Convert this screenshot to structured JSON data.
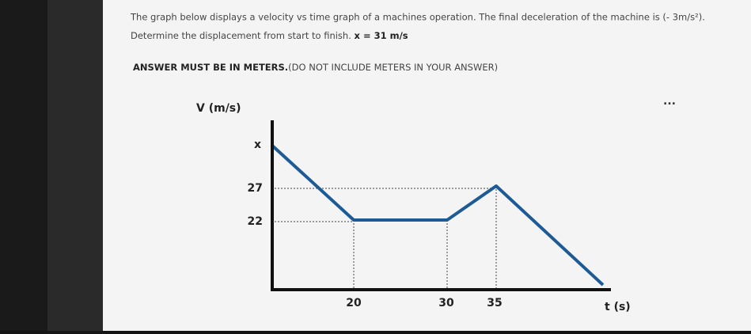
{
  "question": {
    "line1": "The graph below displays a velocity vs time graph of a machines operation. The final deceleration of the machine is (- 3m/s²).",
    "line2_text": "Determine the displacement from start to finish.",
    "line2_bold": "x = 31 m/s"
  },
  "instruction": {
    "bold": "ANSWER MUST BE IN METERS.",
    "normal": "(DO NOT INCLUDE METERS IN YOUR ANSWER)"
  },
  "graph": {
    "y_axis_label": "V (m/s)",
    "x_axis_label": "t (s)",
    "y_labels": [
      "x",
      "27",
      "22"
    ],
    "x_labels": [
      "20",
      "30",
      "35"
    ]
  },
  "menu": "..."
}
